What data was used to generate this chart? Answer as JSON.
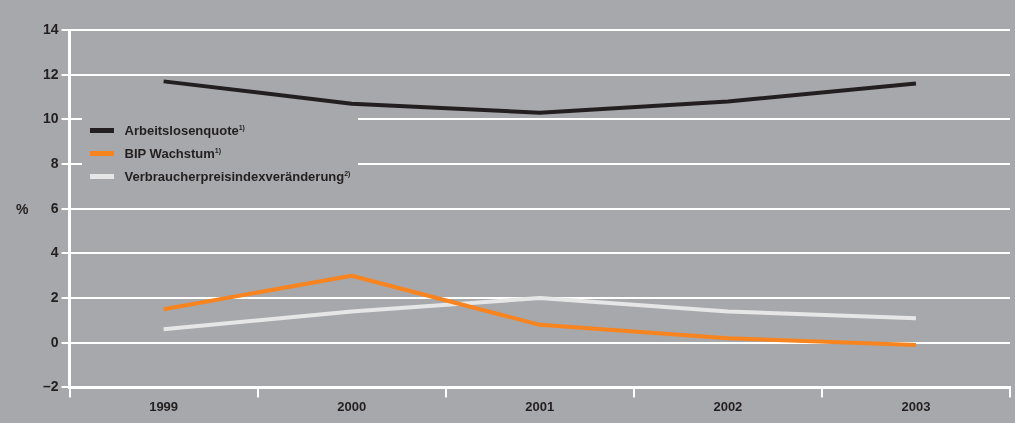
{
  "chart_data": {
    "type": "line",
    "ylabel": "%",
    "categories": [
      "1999",
      "2000",
      "2001",
      "2002",
      "2003"
    ],
    "series": [
      {
        "name": "Arbeitslosenquote$^{1)}$",
        "color": "#231f20",
        "values": [
          11.7,
          10.7,
          10.3,
          10.8,
          11.6
        ]
      },
      {
        "name": "BIP Wachstum$^{1)}$",
        "color": "#f7841f",
        "values": [
          1.5,
          3.0,
          0.8,
          0.2,
          -0.1
        ]
      },
      {
        "name": "Verbraucherpreisindexveränderung$^{2)}$",
        "color": "#e6e6e7",
        "values": [
          0.6,
          1.4,
          2.0,
          1.4,
          1.1
        ]
      }
    ],
    "ylim": [
      -2,
      14
    ],
    "yticks": [
      {
        "value": -2,
        "label": "–2"
      },
      0,
      2,
      4,
      6,
      8,
      10,
      12,
      14
    ],
    "grid": "y",
    "legend": "left",
    "marker": "none",
    "line_style": "solid"
  }
}
